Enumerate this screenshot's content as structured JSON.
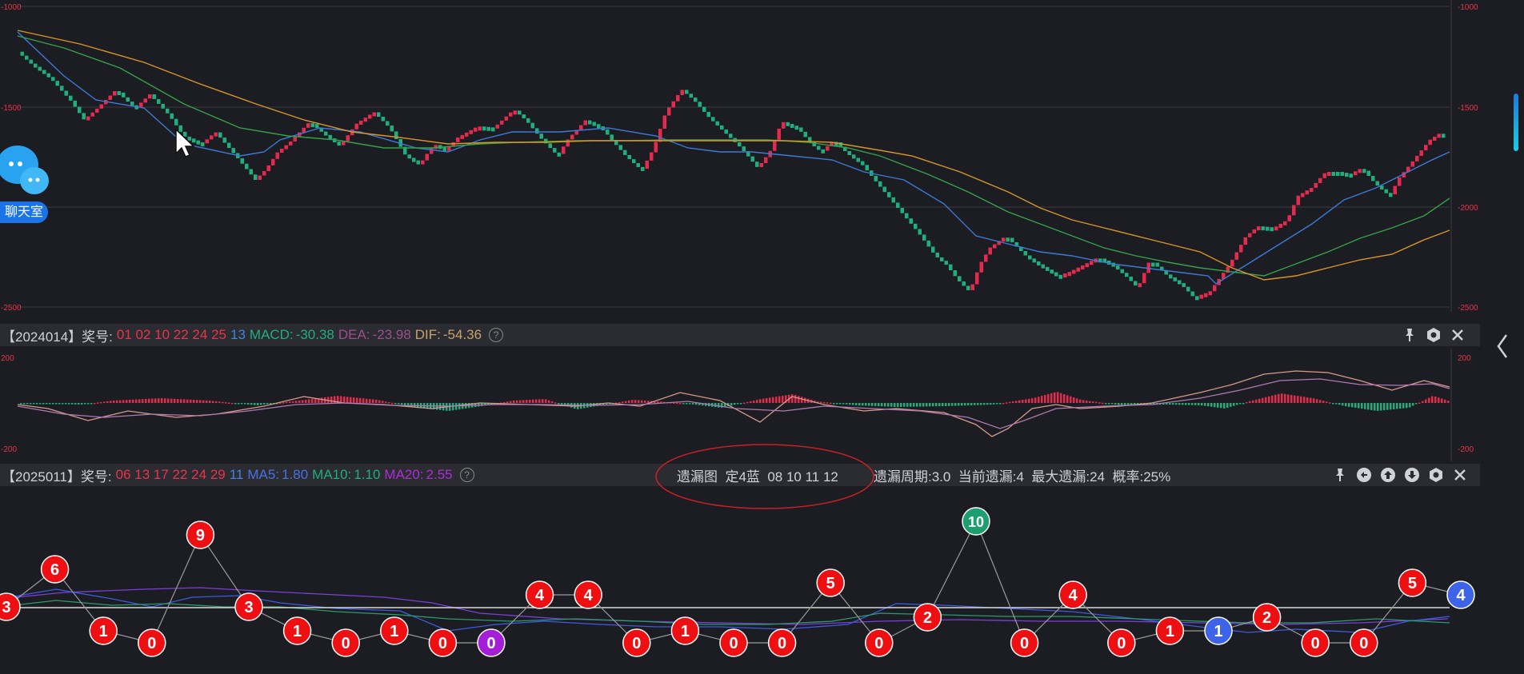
{
  "colors": {
    "up": "#e6294e",
    "down": "#1fae7e",
    "ma_blue": "#3c7ad6",
    "ma_green": "#36a04a",
    "ma_orange": "#d7962a",
    "grid": "#3a3c42",
    "axis_red": "#e8334a",
    "dif": "#d49a8e",
    "dea": "#b07ab0",
    "purple": "#a525d8",
    "ball_red": "#ee0f12",
    "ball_green": "#1d9e6e",
    "ball_blue": "#3d63e8",
    "ball_purple": "#a31ed6"
  },
  "main_chart": {
    "y_ticks": [
      "-1000",
      "-1500",
      "-2000",
      "-2500"
    ],
    "ylim": [
      -2500,
      -1000
    ]
  },
  "macd_bar": {
    "prefix": "【2024014】奖号:",
    "red_nums": "01 02 10 22 24 25",
    "blue_num": "13",
    "macd_label": "MACD:",
    "macd_val": "-30.38",
    "dea_label": "DEA:",
    "dea_val": "-23.98",
    "dif_label": "DIF:",
    "dif_val": "-54.36",
    "help": "?"
  },
  "macd_chart": {
    "y_ticks": [
      "200",
      "-200"
    ],
    "ylim": [
      -200,
      200
    ]
  },
  "omit_bar": {
    "prefix": "【2025011】奖号:",
    "red_nums": "06 13 17 22 24 29",
    "blue_num": "11",
    "ma5_label": "MA5:",
    "ma5_val": "1.80",
    "ma10_label": "MA10:",
    "ma10_val": "1.10",
    "ma20_label": "MA20:",
    "ma20_val": "2.55",
    "help": "?",
    "center_title": "遗漏图  定4蓝  08 10 11 12",
    "stats": "遗漏周期:3.0  当前遗漏:4  最大遗漏:24  概率:25%"
  },
  "chat_widget": {
    "label": "聊天室"
  },
  "icons": [
    "pin-icon",
    "undo-icon",
    "up-arrow-icon",
    "down-arrow-icon",
    "gear-icon",
    "close-icon",
    "chevron-left-icon",
    "chat-bubble-icon",
    "mouse-cursor-icon"
  ],
  "chart_data": [
    {
      "type": "line",
      "name": "omission-trend",
      "values": [
        3,
        6,
        1,
        0,
        9,
        3,
        1,
        0,
        1,
        0,
        0,
        4,
        4,
        0,
        1,
        0,
        0,
        5,
        0,
        2,
        10,
        0,
        4,
        0,
        1,
        1,
        2,
        0,
        0,
        5,
        4
      ],
      "ball_colors": [
        "red",
        "red",
        "red",
        "red",
        "red",
        "red",
        "red",
        "red",
        "red",
        "red",
        "purple",
        "red",
        "red",
        "red",
        "red",
        "red",
        "red",
        "red",
        "red",
        "red",
        "green",
        "red",
        "red",
        "red",
        "red",
        "blue",
        "red",
        "red",
        "red",
        "red",
        "blue"
      ]
    }
  ]
}
